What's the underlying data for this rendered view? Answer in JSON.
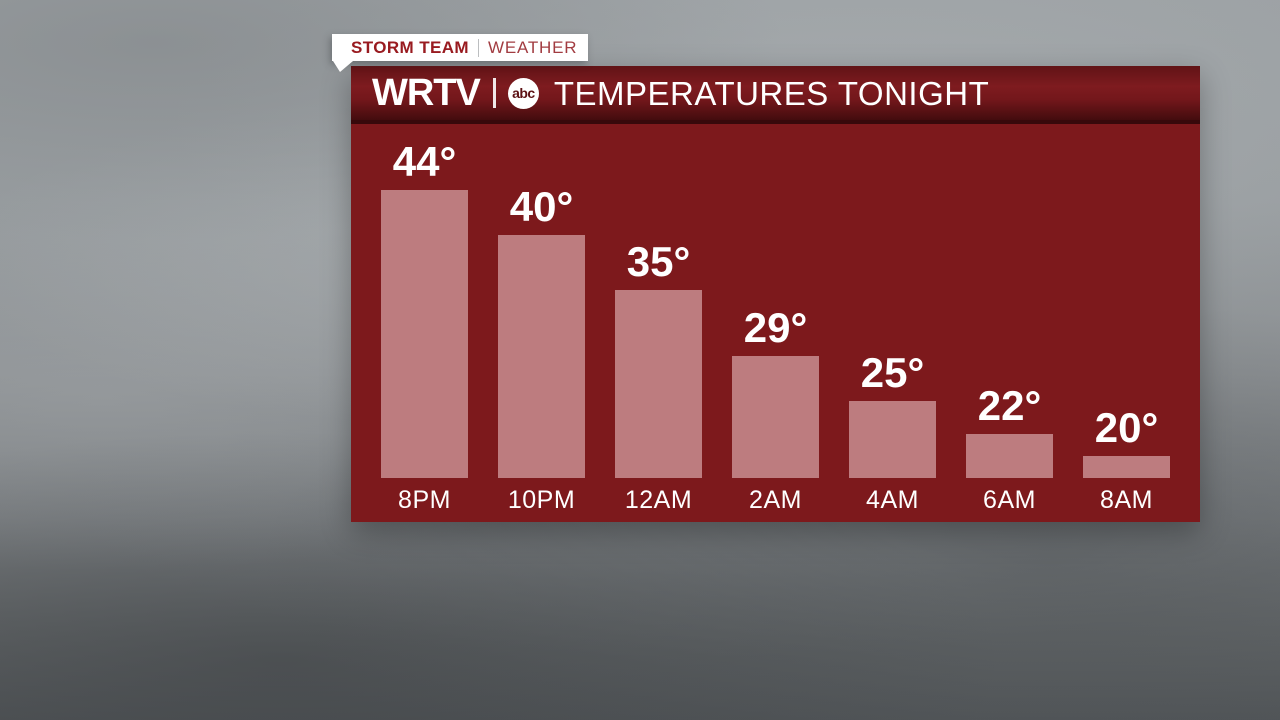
{
  "tab": {
    "brand": "STORM TEAM",
    "section": "WEATHER"
  },
  "header": {
    "station": "WRTV",
    "network": "abc",
    "title": "TEMPERATURES TONIGHT"
  },
  "chart_data": {
    "type": "bar",
    "title": "TEMPERATURES TONIGHT",
    "categories": [
      "8PM",
      "10PM",
      "12AM",
      "2AM",
      "4AM",
      "6AM",
      "8AM"
    ],
    "values": [
      44,
      40,
      35,
      29,
      25,
      22,
      20
    ],
    "value_suffix": "°",
    "ylim": [
      18,
      50
    ],
    "grid": false,
    "legend": false,
    "bar_color": "#bd7c7f",
    "plot_bg_color": "#7d191c",
    "value_label_color": "#ffffff",
    "category_label_color": "#ffffff"
  },
  "colors": {
    "tab_bg": "#ffffff",
    "tab_brand_text": "#991b20",
    "tab_section_text": "#a23c41",
    "header_gradient_top": "#611316",
    "header_gradient_mid": "#7e1b1f",
    "header_gradient_bottom": "#430c0e",
    "header_text": "#ffffff",
    "abc_logo_bg": "#ffffff",
    "abc_logo_text": "#5d1114",
    "sky_top": "#9ba0a3",
    "sky_bottom": "#525659"
  }
}
